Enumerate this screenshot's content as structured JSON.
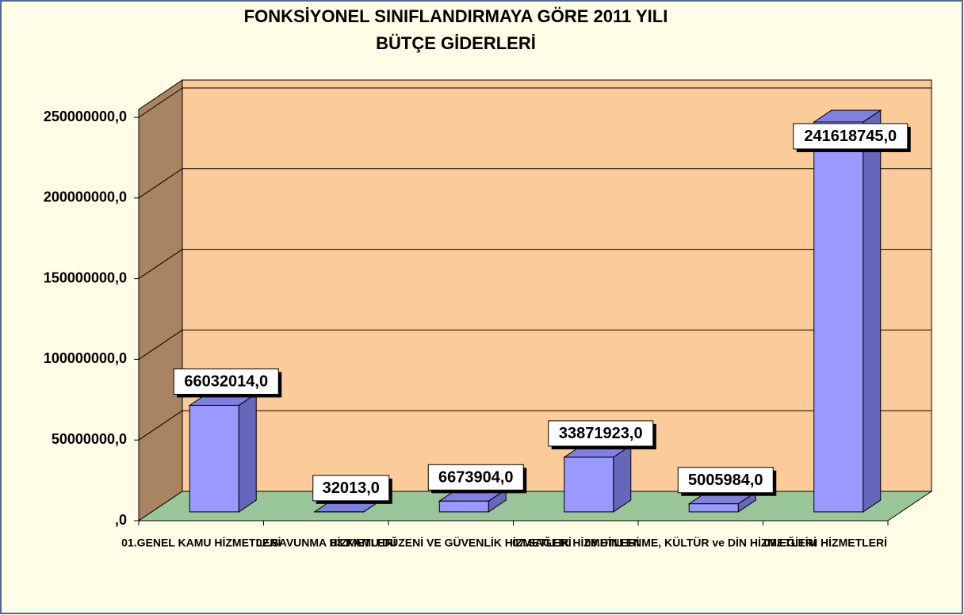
{
  "chart_data": {
    "type": "bar3d",
    "title_lines": [
      "FONKSİYONEL SINIFLANDIRMAYA GÖRE 2011 YILI",
      "BÜTÇE GİDERLERİ"
    ],
    "categories": [
      "01.GENEL KAMU HİZMETLERİ",
      "02.SAVUNMA HİZMETLERİ",
      "03.KAMU DÜZENİ VE GÜVENLİK HİZMETLERİ",
      "07.SAĞLIK HİZMETLERİ",
      "08.DİNLENME, KÜLTÜR ve DİN HİZMETLERİ",
      "09.EĞİTİM HİZMETLERİ"
    ],
    "values": [
      66032014,
      32013,
      6673904,
      33871923,
      5005984,
      241618745
    ],
    "value_labels": [
      "66032014,0",
      "32013,0",
      "6673904,0",
      "33871923,0",
      "5005984,0",
      "241618745,0"
    ],
    "color": "#9999ff",
    "ylim": [
      0,
      250000000
    ],
    "yticks": [
      {
        "value": 0,
        "label": ",0"
      },
      {
        "value": 50000000,
        "label": "50000000,0"
      },
      {
        "value": 100000000,
        "label": "100000000,0"
      },
      {
        "value": 150000000,
        "label": "150000000,0"
      },
      {
        "value": 200000000,
        "label": "200000000,0"
      },
      {
        "value": 250000000,
        "label": "250000000,0"
      }
    ],
    "grid": true
  }
}
